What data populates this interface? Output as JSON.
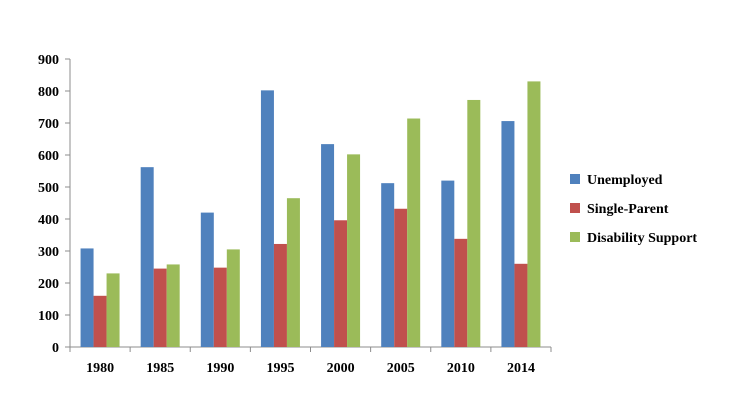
{
  "chart_data": {
    "type": "bar",
    "title": "",
    "xlabel": "",
    "ylabel": "",
    "categories": [
      "1980",
      "1985",
      "1990",
      "1995",
      "2000",
      "2005",
      "2010",
      "2014"
    ],
    "series": [
      {
        "name": "Unemployed",
        "color": "#4f81bd",
        "values": [
          308,
          562,
          420,
          802,
          634,
          512,
          520,
          706
        ]
      },
      {
        "name": "Single-Parent",
        "color": "#c0504d",
        "values": [
          160,
          245,
          248,
          322,
          396,
          432,
          338,
          260
        ]
      },
      {
        "name": "Disability Support",
        "color": "#9bbb59",
        "values": [
          230,
          258,
          305,
          465,
          602,
          714,
          772,
          830
        ]
      }
    ],
    "ylim": [
      0,
      900
    ],
    "yticks": [
      0,
      100,
      200,
      300,
      400,
      500,
      600,
      700,
      800,
      900
    ],
    "grid": false,
    "legend_position": "right"
  }
}
